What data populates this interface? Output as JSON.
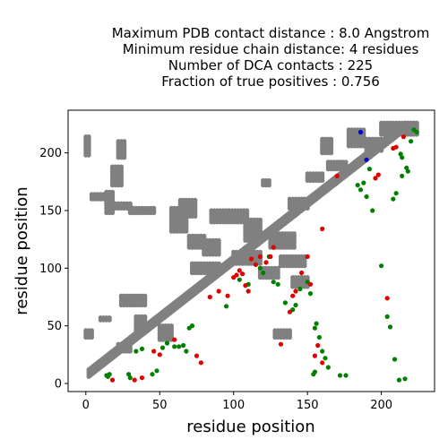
{
  "chart_data": {
    "type": "scatter",
    "title_lines": [
      "Maximum PDB contact distance : 8.0 Angstrom",
      "Minimum residue chain distance: 4 residues",
      "Number of DCA contacts : 225",
      "Fraction of true positives : 0.756"
    ],
    "xlabel": "residue position",
    "ylabel": "residue position",
    "xlim": [
      -12,
      236
    ],
    "ylim": [
      -7,
      237
    ],
    "xticks": [
      0,
      50,
      100,
      150,
      200
    ],
    "yticks": [
      0,
      50,
      100,
      150,
      200
    ],
    "grid": false,
    "legend": "none",
    "colors": {
      "pdb_contacts": "#808080",
      "true_positive": "#008000",
      "false_positive": "#e00000",
      "other": "#0000cc"
    },
    "series": [
      {
        "key": "pdb_contacts",
        "color": "#808080",
        "size": 2.6,
        "bands": [
          {
            "from": 2,
            "to": 224,
            "offsets": [
              4,
              6,
              8,
              10
            ]
          }
        ],
        "clusters": [
          {
            "x": [
              0,
              4
            ],
            "y": [
              40,
              46
            ]
          },
          {
            "x": [
              0,
              3
            ],
            "y": [
              198,
              214
            ]
          },
          {
            "x": [
              22,
              30
            ],
            "y": [
              28,
              34
            ]
          },
          {
            "x": [
              10,
              16
            ],
            "y": [
              55,
              58
            ]
          },
          {
            "x": [
              14,
              18
            ],
            "y": [
              148,
              166
            ]
          },
          {
            "x": [
              4,
              18
            ],
            "y": [
              160,
              164
            ]
          },
          {
            "x": [
              14,
              30
            ],
            "y": [
              152,
              156
            ]
          },
          {
            "x": [
              18,
              24
            ],
            "y": [
              172,
              188
            ]
          },
          {
            "x": [
              22,
              26
            ],
            "y": [
              196,
              210
            ]
          },
          {
            "x": [
              30,
              46
            ],
            "y": [
              148,
              152
            ]
          },
          {
            "x": [
              24,
              40
            ],
            "y": [
              68,
              76
            ]
          },
          {
            "x": [
              34,
              40
            ],
            "y": [
              44,
              58
            ]
          },
          {
            "x": [
              50,
              58
            ],
            "y": [
              38,
              50
            ]
          },
          {
            "x": [
              58,
              68
            ],
            "y": [
              132,
              152
            ]
          },
          {
            "x": [
              64,
              74
            ],
            "y": [
              145,
              160
            ]
          },
          {
            "x": [
              70,
              80
            ],
            "y": [
              118,
              128
            ]
          },
          {
            "x": [
              80,
              90
            ],
            "y": [
              112,
              125
            ]
          },
          {
            "x": [
              85,
              110
            ],
            "y": [
              140,
              150
            ]
          },
          {
            "x": [
              108,
              118
            ],
            "y": [
              124,
              142
            ]
          },
          {
            "x": [
              125,
              142
            ],
            "y": [
              118,
              130
            ]
          },
          {
            "x": [
              138,
              150
            ],
            "y": [
              152,
              160
            ]
          },
          {
            "x": [
              150,
              160
            ],
            "y": [
              176,
              183
            ]
          },
          {
            "x": [
              132,
              148
            ],
            "y": [
              102,
              110
            ]
          },
          {
            "x": [
              140,
              150
            ],
            "y": [
              84,
              92
            ]
          },
          {
            "x": [
              118,
              130
            ],
            "y": [
              92,
              100
            ]
          },
          {
            "x": [
              72,
              90
            ],
            "y": [
              96,
              104
            ]
          },
          {
            "x": [
              100,
              118
            ],
            "y": [
              104,
              114
            ]
          },
          {
            "x": [
              190,
              200
            ],
            "y": [
              202,
              212
            ]
          },
          {
            "x": [
              200,
              224
            ],
            "y": [
              216,
              226
            ]
          },
          {
            "x": [
              178,
              188
            ],
            "y": [
              206,
              220
            ]
          },
          {
            "x": [
              160,
              166
            ],
            "y": [
              200,
              212
            ]
          },
          {
            "x": [
              120,
              124
            ],
            "y": [
              172,
              176
            ]
          },
          {
            "x": [
              164,
              176
            ],
            "y": [
              186,
              192
            ]
          },
          {
            "x": [
              128,
              138
            ],
            "y": [
              40,
              46
            ]
          }
        ]
      },
      {
        "key": "true_positive",
        "color": "#008000",
        "size": 2.6,
        "points": [
          [
            14,
            7
          ],
          [
            15,
            6
          ],
          [
            16,
            8
          ],
          [
            30,
            5
          ],
          [
            29,
            8
          ],
          [
            34,
            28
          ],
          [
            38,
            30
          ],
          [
            45,
            8
          ],
          [
            48,
            11
          ],
          [
            52,
            31
          ],
          [
            55,
            35
          ],
          [
            60,
            32
          ],
          [
            63,
            32
          ],
          [
            66,
            33
          ],
          [
            68,
            28
          ],
          [
            70,
            48
          ],
          [
            72,
            50
          ],
          [
            95,
            67
          ],
          [
            104,
            90
          ],
          [
            110,
            86
          ],
          [
            118,
            100
          ],
          [
            120,
            96
          ],
          [
            124,
            110
          ],
          [
            127,
            88
          ],
          [
            130,
            86
          ],
          [
            135,
            70
          ],
          [
            140,
            64
          ],
          [
            142,
            68
          ],
          [
            145,
            82
          ],
          [
            150,
            88
          ],
          [
            152,
            78
          ],
          [
            155,
            48
          ],
          [
            156,
            52
          ],
          [
            158,
            40
          ],
          [
            160,
            28
          ],
          [
            162,
            22
          ],
          [
            164,
            14
          ],
          [
            155,
            10
          ],
          [
            154,
            8
          ],
          [
            172,
            7
          ],
          [
            176,
            7
          ],
          [
            184,
            172
          ],
          [
            186,
            168
          ],
          [
            188,
            174
          ],
          [
            190,
            162
          ],
          [
            192,
            186
          ],
          [
            194,
            150
          ],
          [
            200,
            102
          ],
          [
            204,
            58
          ],
          [
            206,
            49
          ],
          [
            209,
            21
          ],
          [
            212,
            3
          ],
          [
            216,
            4
          ],
          [
            220,
            210
          ],
          [
            222,
            220
          ],
          [
            224,
            218
          ],
          [
            213,
            199
          ],
          [
            214,
            196
          ],
          [
            217,
            187
          ],
          [
            218,
            184
          ],
          [
            214,
            180
          ],
          [
            210,
            165
          ],
          [
            208,
            160
          ]
        ]
      },
      {
        "key": "false_positive",
        "color": "#e00000",
        "size": 2.6,
        "points": [
          [
            18,
            3
          ],
          [
            33,
            3
          ],
          [
            38,
            5
          ],
          [
            46,
            28
          ],
          [
            50,
            25
          ],
          [
            60,
            38
          ],
          [
            75,
            24
          ],
          [
            78,
            18
          ],
          [
            84,
            75
          ],
          [
            90,
            80
          ],
          [
            96,
            76
          ],
          [
            100,
            92
          ],
          [
            102,
            94
          ],
          [
            104,
            98
          ],
          [
            106,
            95
          ],
          [
            108,
            85
          ],
          [
            110,
            80
          ],
          [
            112,
            108
          ],
          [
            115,
            103
          ],
          [
            118,
            110
          ],
          [
            122,
            105
          ],
          [
            125,
            110
          ],
          [
            127,
            118
          ],
          [
            132,
            34
          ],
          [
            138,
            62
          ],
          [
            140,
            76
          ],
          [
            142,
            80
          ],
          [
            146,
            96
          ],
          [
            150,
            110
          ],
          [
            152,
            86
          ],
          [
            155,
            24
          ],
          [
            157,
            33
          ],
          [
            160,
            18
          ],
          [
            160,
            134
          ],
          [
            170,
            180
          ],
          [
            196,
            178
          ],
          [
            204,
            74
          ],
          [
            208,
            204
          ],
          [
            210,
            205
          ],
          [
            215,
            214
          ],
          [
            198,
            181
          ]
        ]
      },
      {
        "key": "other",
        "color": "#0000cc",
        "size": 2.6,
        "points": [
          [
            186,
            218
          ],
          [
            190,
            194
          ]
        ]
      }
    ]
  }
}
